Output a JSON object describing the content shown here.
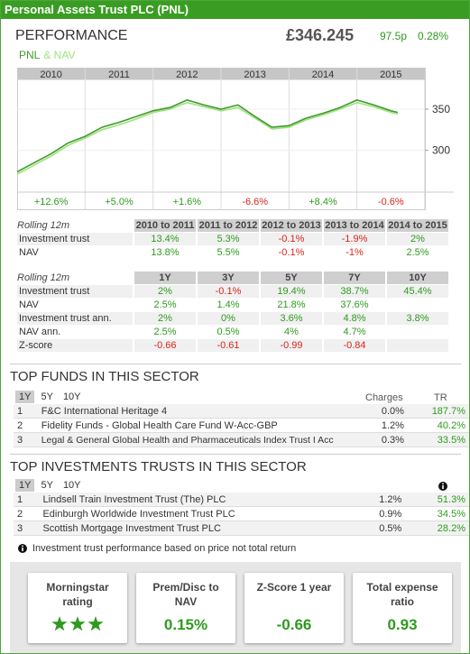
{
  "header": {
    "title": "Personal Assets Trust PLC (PNL)"
  },
  "performance": {
    "title": "PERFORMANCE",
    "price": "£346.245",
    "change": "97.5p",
    "change_pct": "0.28%",
    "chart": {
      "type": "line",
      "periods": [
        "2010",
        "2011",
        "2012",
        "2013",
        "2014",
        "2015"
      ],
      "period_returns": [
        "+12.6%",
        "+5.0%",
        "+1.6%",
        "-6.6%",
        "+8.4%",
        "-0.6%"
      ],
      "xlim": [
        2010,
        2016
      ],
      "ylim": [
        257,
        385
      ],
      "yticks": [
        300,
        350
      ],
      "x": [
        2010.0,
        2010.25,
        2010.5,
        2010.75,
        2011.0,
        2011.25,
        2011.5,
        2011.75,
        2012.0,
        2012.25,
        2012.5,
        2012.75,
        2013.0,
        2013.25,
        2013.5,
        2013.75,
        2014.0,
        2014.25,
        2014.5,
        2014.75,
        2015.0,
        2015.25,
        2015.5,
        2015.6
      ],
      "series": [
        {
          "name": "PNL",
          "color": "#3f9b2c",
          "values": [
            274,
            285,
            296,
            309,
            317,
            328,
            334,
            341,
            348,
            352,
            361,
            355,
            350,
            355,
            341,
            328,
            330,
            339,
            345,
            352,
            361,
            355,
            348,
            346
          ]
        },
        {
          "name": "& NAV",
          "color": "#9ee27e",
          "values": [
            271,
            282,
            293,
            306,
            315,
            325,
            331,
            338,
            346,
            350,
            358,
            353,
            348,
            352,
            339,
            326,
            328,
            337,
            343,
            350,
            358,
            353,
            346,
            344
          ]
        }
      ]
    }
  },
  "rolling_table": {
    "header": [
      "Rolling 12m",
      "2010 to 2011",
      "2011 to 2012",
      "2012 to 2013",
      "2013 to 2014",
      "2014 to 2015"
    ],
    "rows": [
      [
        "Investment trust",
        "13.4%",
        "5.3%",
        "-0.1%",
        "-1.9%",
        "2%"
      ],
      [
        "NAV",
        "13.8%",
        "5.5%",
        "-0.1%",
        "-1%",
        "2.5%"
      ]
    ]
  },
  "period_table": {
    "header": [
      "Rolling 12m",
      "1Y",
      "3Y",
      "5Y",
      "7Y",
      "10Y"
    ],
    "rows": [
      [
        "Investment trust",
        "2%",
        "-0.1%",
        "19.4%",
        "38.7%",
        "45.4%"
      ],
      [
        "NAV",
        "2.5%",
        "1.4%",
        "21.8%",
        "37.6%",
        null
      ],
      [
        "Investment trust ann.",
        "2%",
        "0%",
        "3.6%",
        "4.8%",
        "3.8%"
      ],
      [
        "NAV ann.",
        "2.5%",
        "0.5%",
        "4%",
        "4.7%",
        null
      ],
      [
        "Z-score",
        "-0.66",
        "-0.61",
        "-0.99",
        "-0.84",
        null
      ]
    ]
  },
  "top_funds": {
    "title": "TOP FUNDS IN THIS SECTOR",
    "tabs": [
      "1Y",
      "5Y",
      "10Y"
    ],
    "columns": [
      "Charges",
      "TR"
    ],
    "rows": [
      [
        "1",
        "F&C International Heritage 4",
        "0.0%",
        "187.7%"
      ],
      [
        "2",
        "Fidelity Funds - Global Health Care Fund W-Acc-GBP",
        "1.2%",
        "40.2%"
      ],
      [
        "3",
        "Legal & General Global Health and Pharmaceuticals Index Trust I Acc",
        "0.3%",
        "33.5%"
      ]
    ]
  },
  "top_trusts": {
    "title": "TOP INVESTMENTS TRUSTS IN THIS SECTOR",
    "tabs": [
      "1Y",
      "5Y",
      "10Y"
    ],
    "rows": [
      [
        "1",
        "Lindsell Train Investment Trust (The) PLC",
        "1.2%",
        "51.3%"
      ],
      [
        "2",
        "Edinburgh Worldwide Investment Trust PLC",
        "0.9%",
        "34.5%"
      ],
      [
        "3",
        "Scottish Mortgage Investment Trust PLC",
        "0.5%",
        "28.2%"
      ]
    ],
    "note": "Investment trust performance based on price not total return"
  },
  "cards": [
    {
      "title": "Morningstar rating",
      "stars": 3
    },
    {
      "title": "Prem/Disc to NAV",
      "value": "0.15%"
    },
    {
      "title": "Z-Score 1 year",
      "value": "-0.66"
    },
    {
      "title": "Total expense ratio",
      "value": "0.93"
    }
  ]
}
